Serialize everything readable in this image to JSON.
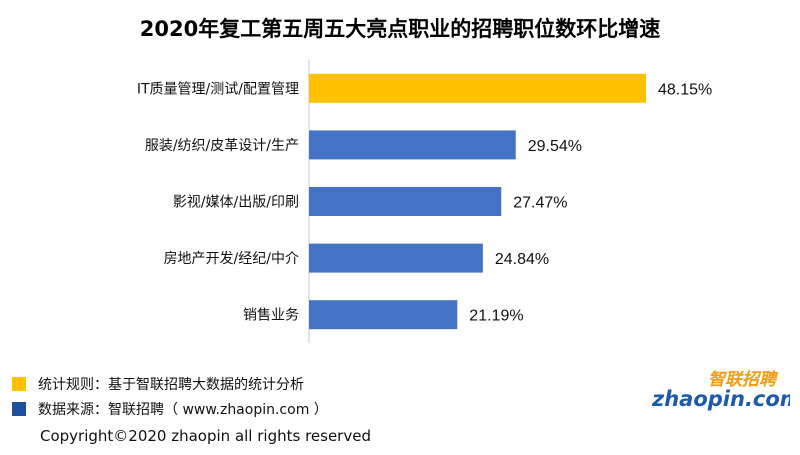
{
  "title": "2020年复工第五周五大亮点职业的招聘职位数环比增速",
  "chart_data": {
    "type": "bar",
    "orientation": "horizontal",
    "title": "2020年复工第五周五大亮点职业的招聘职位数环比增速",
    "categories": [
      "IT质量管理/测试/配置管理",
      "服装/纺织/皮革设计/生产",
      "影视/媒体/出版/印刷",
      "房地产开发/经纪/中介",
      "销售业务"
    ],
    "values": [
      48.15,
      29.54,
      27.47,
      24.84,
      21.19
    ],
    "value_labels": [
      "48.15%",
      "29.54%",
      "27.47%",
      "24.84%",
      "21.19%"
    ],
    "highlight_index": 0,
    "highlight_color": "#ffc000",
    "bar_color": "#4472c4",
    "xlim": [
      0,
      50
    ],
    "grid": false
  },
  "notes": [
    {
      "text": "统计规则：基于智联招聘大数据的统计分析",
      "color": "#ffc000"
    },
    {
      "text": "数据来源：智联招聘（ www.zhaopin.com ）",
      "color": "#1f4e9c"
    }
  ],
  "logo": {
    "cn": "智联招聘",
    "en": "zhaopin.com",
    "color_cn": "#f39c12",
    "color_en": "#1e5aa8"
  },
  "copyright": "Copyright©2020 zhaopin all rights reserved"
}
